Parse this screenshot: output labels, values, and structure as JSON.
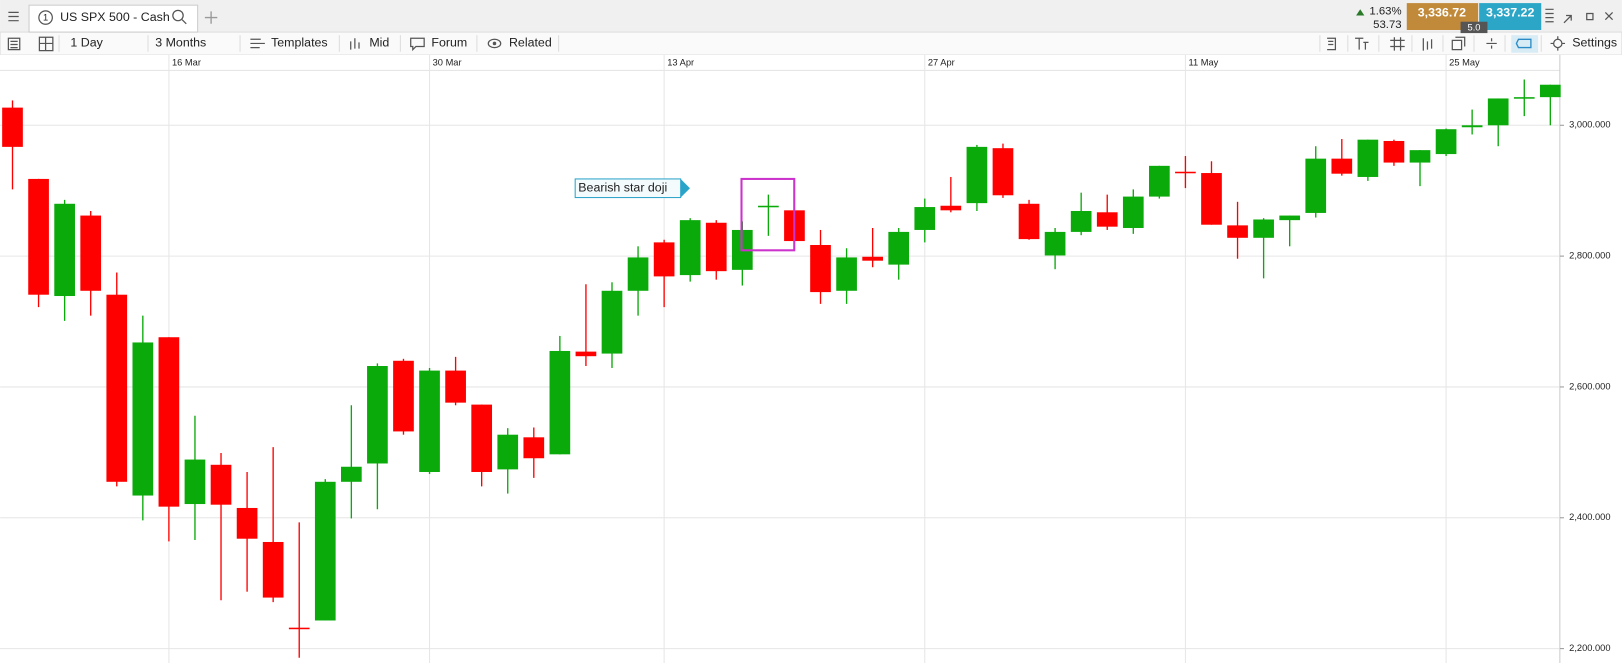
{
  "toolbar": {
    "tab_number": "1",
    "tab": "US SPX 500 - Cash",
    "change": "1.63%",
    "points": "53.73",
    "sell": "3,336.72",
    "buy": "3,337.22",
    "spread": "5.0",
    "menu": [
      "1 Day",
      "3 Months",
      "Templates",
      "Mid",
      "Forum",
      "Related"
    ],
    "settings": "Settings"
  },
  "chart_data": {
    "type": "candlestick",
    "annotation": "Bearish star doji",
    "categories": [
      null,
      null,
      null,
      null,
      null,
      null,
      "16 Mar",
      null,
      null,
      null,
      null,
      null,
      null,
      null,
      null,
      null,
      "30 Mar",
      null,
      null,
      null,
      null,
      null,
      null,
      null,
      null,
      "13 Apr",
      null,
      null,
      null,
      null,
      null,
      null,
      null,
      null,
      null,
      "27 Apr",
      null,
      null,
      null,
      null,
      null,
      null,
      null,
      null,
      null,
      "11 May",
      null,
      null,
      null,
      null,
      null,
      null,
      null,
      null,
      null,
      "25 May",
      null,
      null,
      null,
      null
    ],
    "open": [
      3027,
      2918,
      2739,
      2862,
      2741,
      2434,
      2676,
      2421,
      2481,
      2415,
      2363,
      2232,
      2243,
      2455,
      2483,
      2640,
      2470,
      2625,
      2573,
      2474,
      2523,
      2497,
      2654,
      2651,
      2747,
      2821,
      2771,
      2851,
      2779,
      2875,
      2870,
      2817,
      2747,
      2799,
      2787,
      2840,
      2877,
      2881,
      2965,
      2880,
      2801,
      2837,
      2867,
      2843,
      2891,
      2929,
      2927,
      2847,
      2828,
      2855,
      2866,
      2949,
      2921,
      2976,
      2943,
      2956,
      2997,
      3000,
      3041,
      3043
    ],
    "high": [
      3038,
      2918,
      2886,
      2869,
      2775,
      2709,
      2676,
      2556,
      2499,
      2470,
      2508,
      2393,
      2459,
      2572,
      2636,
      2643,
      2629,
      2646,
      2573,
      2537,
      2538,
      2678,
      2757,
      2760,
      2815,
      2825,
      2858,
      2855,
      2853,
      2894,
      2870,
      2840,
      2812,
      2843,
      2843,
      2888,
      2921,
      2970,
      2972,
      2886,
      2843,
      2897,
      2894,
      2902,
      2938,
      2953,
      2945,
      2883,
      2858,
      2862,
      2968,
      2979,
      2978,
      2978,
      2962,
      2995,
      3024,
      3041,
      3070,
      3062
    ],
    "low": [
      2902,
      2722,
      2701,
      2709,
      2448,
      2396,
      2364,
      2366,
      2274,
      2287,
      2271,
      2186,
      2243,
      2399,
      2413,
      2527,
      2467,
      2572,
      2448,
      2437,
      2461,
      2497,
      2632,
      2629,
      2709,
      2722,
      2761,
      2764,
      2755,
      2831,
      2823,
      2727,
      2727,
      2783,
      2764,
      2821,
      2867,
      2869,
      2889,
      2825,
      2780,
      2832,
      2840,
      2834,
      2888,
      2904,
      2848,
      2796,
      2766,
      2815,
      2859,
      2923,
      2915,
      2938,
      2907,
      2953,
      2986,
      2968,
      3014,
      3000
    ],
    "close": [
      2967,
      2741,
      2880,
      2747,
      2455,
      2668,
      2417,
      2489,
      2420,
      2368,
      2278,
      2231,
      2455,
      2478,
      2632,
      2532,
      2625,
      2576,
      2470,
      2527,
      2491,
      2655,
      2647,
      2747,
      2798,
      2769,
      2855,
      2777,
      2840,
      2877,
      2823,
      2745,
      2798,
      2793,
      2837,
      2875,
      2870,
      2967,
      2893,
      2826,
      2837,
      2869,
      2845,
      2891,
      2938,
      2927,
      2848,
      2828,
      2856,
      2862,
      2949,
      2926,
      2978,
      2943,
      2962,
      2994,
      3000,
      3041,
      3043,
      3062
    ],
    "up_color": "#0aaa0a",
    "down_color": "#ff0000",
    "ylim": [
      2178,
      3084
    ],
    "yticks": [
      {
        "value": 2200,
        "label": "2,200.000"
      },
      {
        "value": 2400,
        "label": "2,400.000"
      },
      {
        "value": 2600,
        "label": "2,600.000"
      },
      {
        "value": 2800,
        "label": "2,800.000"
      },
      {
        "value": 3000,
        "label": "3,000.000"
      }
    ],
    "grid": true
  }
}
